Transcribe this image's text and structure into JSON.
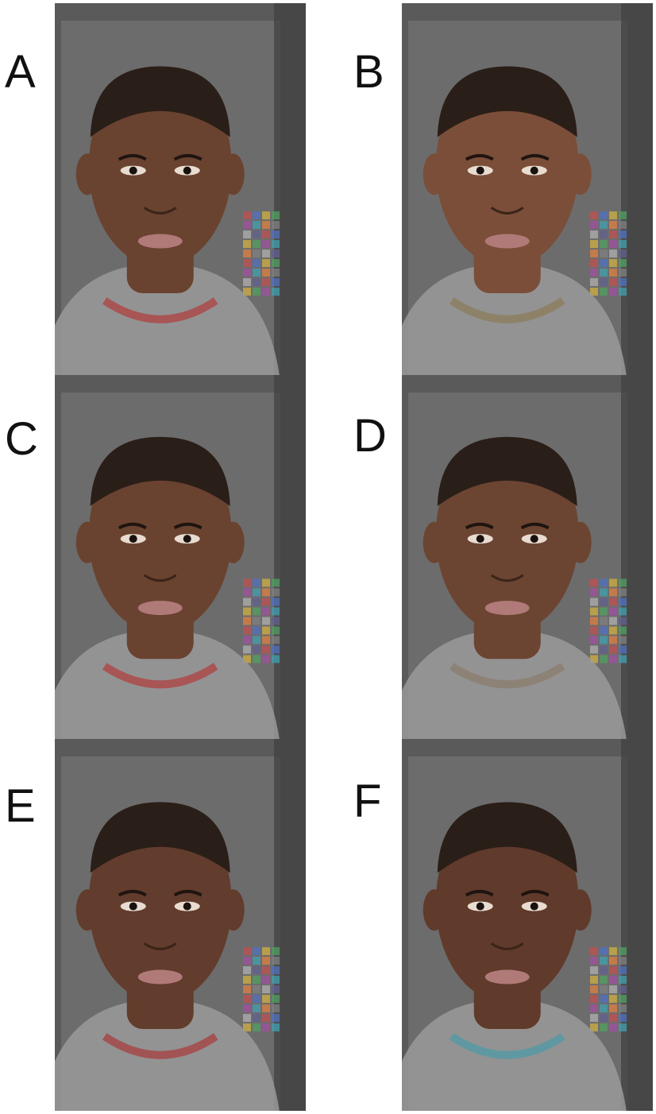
{
  "figure": {
    "panels": [
      {
        "label": "A",
        "shirt_accent": "#b03a3a",
        "skin": "#6a4230"
      },
      {
        "label": "B",
        "shirt_accent": "#8a7a55",
        "skin": "#7a4e38"
      },
      {
        "label": "C",
        "shirt_accent": "#b03a3a",
        "skin": "#6a4230"
      },
      {
        "label": "D",
        "shirt_accent": "#8a7a6a",
        "skin": "#6c4432"
      },
      {
        "label": "E",
        "shirt_accent": "#a83838",
        "skin": "#623c2c"
      },
      {
        "label": "F",
        "shirt_accent": "#4a9aa8",
        "skin": "#603a2a"
      }
    ]
  },
  "colors": {
    "background": "#ffffff",
    "panel_gray": "#6e6e6e",
    "letter": "#111111"
  }
}
